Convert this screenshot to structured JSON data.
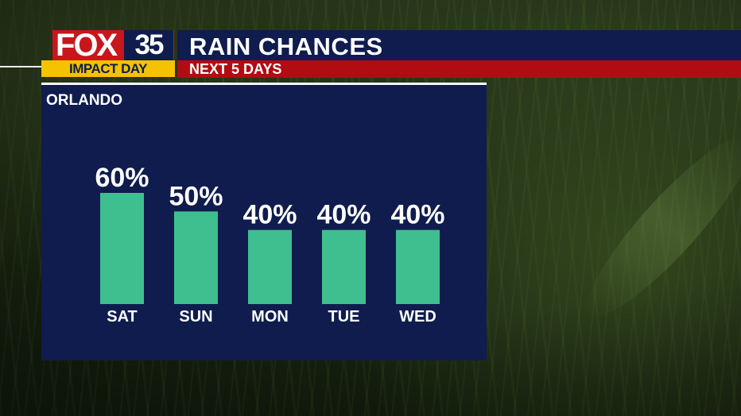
{
  "header": {
    "logo_brand": "FOX",
    "logo_channel": "35",
    "badge": "IMPACT DAY",
    "title": "RAIN CHANCES",
    "subtitle": "NEXT 5 DAYS"
  },
  "panel": {
    "location": "ORLANDO"
  },
  "colors": {
    "navy": "#0f1c4d",
    "red": "#b00d12",
    "brand_red": "#c8161d",
    "yellow": "#f4c200",
    "bar": "#3fbf8f",
    "text": "#ffffff"
  },
  "chart_data": {
    "type": "bar",
    "categories": [
      "SAT",
      "SUN",
      "MON",
      "TUE",
      "WED"
    ],
    "values": [
      60,
      50,
      40,
      40,
      40
    ],
    "value_labels": [
      "60%",
      "50%",
      "40%",
      "40%",
      "40%"
    ],
    "unit": "%",
    "title": "RAIN CHANCES",
    "subtitle": "NEXT 5 DAYS",
    "location": "ORLANDO",
    "ylim": [
      0,
      100
    ],
    "grid": false,
    "legend": "none"
  }
}
